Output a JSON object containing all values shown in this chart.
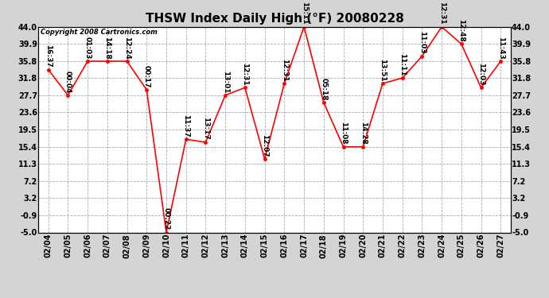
{
  "title": "THSW Index Daily High (°F) 20080228",
  "copyright": "Copyright 2008 Cartronics.com",
  "dates": [
    "02/04",
    "02/05",
    "02/06",
    "02/07",
    "02/08",
    "02/09",
    "02/10",
    "02/11",
    "02/12",
    "02/13",
    "02/14",
    "02/15",
    "02/16",
    "02/17",
    "02/18",
    "02/19",
    "02/20",
    "02/21",
    "02/22",
    "02/23",
    "02/24",
    "02/25",
    "02/26",
    "02/27"
  ],
  "values": [
    33.8,
    27.7,
    35.8,
    35.8,
    35.8,
    29.0,
    -5.0,
    17.2,
    16.5,
    27.7,
    29.5,
    12.5,
    30.5,
    44.0,
    26.0,
    15.4,
    15.4,
    30.5,
    31.8,
    37.0,
    44.0,
    39.9,
    29.5,
    35.8
  ],
  "times": [
    "16:37",
    "00:04",
    "01:03",
    "14:18",
    "12:24",
    "00:17",
    "00:22",
    "11:37",
    "13:17",
    "13:01",
    "12:31",
    "12:07",
    "12:31",
    "15:11",
    "05:18",
    "11:08",
    "14:28",
    "13:51",
    "11:11",
    "11:03",
    "12:31",
    "12:48",
    "12:03",
    "11:43"
  ],
  "ylim": [
    -5.0,
    44.0
  ],
  "yticks": [
    -5.0,
    -0.9,
    3.2,
    7.2,
    11.3,
    15.4,
    19.5,
    23.6,
    27.7,
    31.8,
    35.8,
    39.9,
    44.0
  ],
  "line_color": "red",
  "marker_color": "red",
  "bg_color": "#d4d4d4",
  "plot_bg_color": "#ffffff",
  "grid_color": "#aaaaaa",
  "title_fontsize": 11,
  "label_fontsize": 6.5,
  "copyright_fontsize": 6,
  "tick_fontsize": 7
}
